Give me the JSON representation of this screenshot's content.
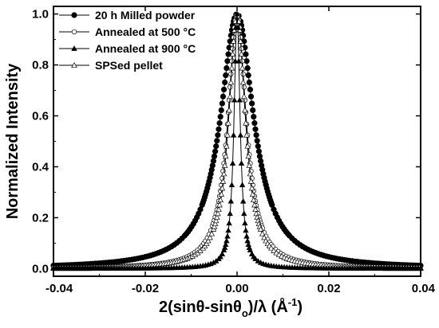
{
  "chart_data": {
    "type": "line",
    "xlabel": "2(sinθ-sinθ",
    "xlabel_sub": "o",
    "xlabel_suffix": ")/λ (Å",
    "xlabel_sup": "-1",
    "xlabel_end": ")",
    "ylabel": "Normalized Intensity",
    "xlim": [
      -0.04,
      0.04
    ],
    "ylim": [
      -0.03,
      1.03
    ],
    "x_ticks": [
      -0.04,
      -0.02,
      0.0,
      0.02,
      0.04
    ],
    "x_tick_labels": [
      "-0.04",
      "-0.02",
      "0.00",
      "0.02",
      "0.04"
    ],
    "y_ticks": [
      0.0,
      0.2,
      0.4,
      0.6,
      0.8,
      1.0
    ],
    "y_tick_labels": [
      "0.0",
      "0.2",
      "0.4",
      "0.6",
      "0.8",
      "1.0"
    ],
    "grid": false,
    "legend_position": "top-left",
    "series": [
      {
        "name": "20 h Milled powder",
        "marker": "filled-circle",
        "color": "#000000",
        "profile": "lorentzian",
        "center": 0.0,
        "fwhm": 0.0088,
        "baseline": 0.0
      },
      {
        "name": "Annealed at 500 °C",
        "marker": "open-circle",
        "color": "#000000",
        "profile": "lorentzian",
        "center": 0.0,
        "fwhm": 0.0048,
        "baseline": 0.0
      },
      {
        "name": "Annealed at 900 °C",
        "marker": "filled-triangle",
        "color": "#000000",
        "profile": "lorentzian",
        "center": 0.0,
        "fwhm": 0.0016,
        "baseline": 0.0
      },
      {
        "name": "SPSed pellet",
        "marker": "open-triangle",
        "color": "#000000",
        "profile": "lorentzian",
        "center": 0.0,
        "fwhm": 0.0044,
        "baseline": 0.0
      }
    ]
  }
}
